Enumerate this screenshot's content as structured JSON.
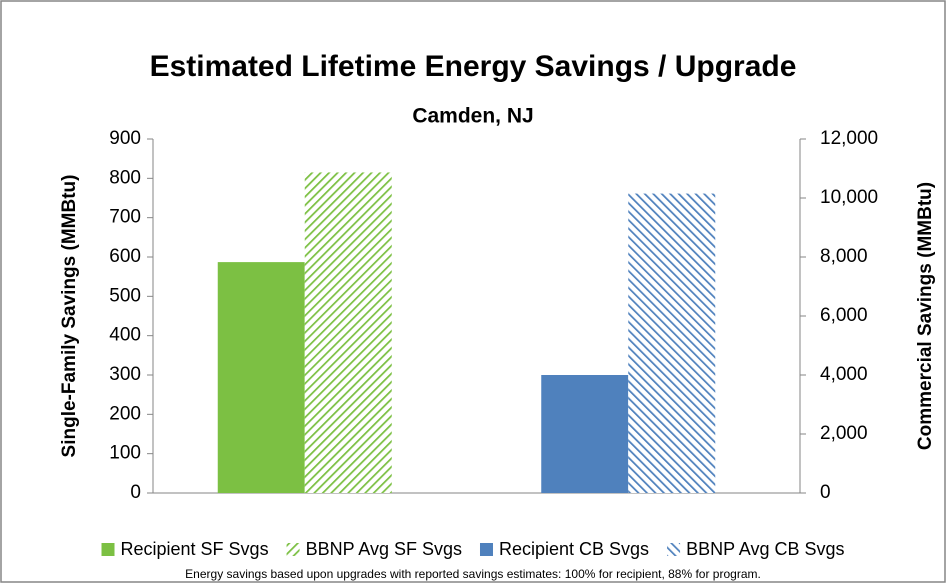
{
  "chart_data": {
    "type": "bar",
    "title": "Estimated Lifetime Energy Savings / Upgrade",
    "subtitle": "Camden, NJ",
    "y_label": "Single-Family Savings (MMBtu)",
    "y2_label": "Commercial Savings (MMBtu)",
    "note": "Energy savings based upon upgrades with reported savings estimates: 100% for recipient, 88% for program.",
    "categories": [
      null,
      null
    ],
    "series": [
      {
        "name": "Recipient SF Svgs",
        "color": "#7cc043",
        "hatch": false,
        "values": [
          587,
          null
        ]
      },
      {
        "name": "BBNP Avg SF Svgs",
        "color": "#7cc043",
        "hatch": true,
        "values": [
          815,
          null
        ]
      },
      {
        "name": "Recipient CB Svgs",
        "color": "#4f81bd",
        "hatch": false,
        "axis": "y2",
        "values": [
          null,
          4000
        ]
      },
      {
        "name": "BBNP Avg CB Svgs",
        "color": "#4f81bd",
        "hatch": true,
        "axis": "y2",
        "values": [
          null,
          10150
        ]
      }
    ],
    "ylim": [
      0,
      900
    ],
    "yticks": [
      0,
      100,
      200,
      300,
      400,
      500,
      600,
      700,
      800,
      900
    ],
    "y2lim": [
      0,
      12000
    ],
    "y2ticks": [
      0,
      {
        "value": 2000,
        "label": "2,000"
      },
      {
        "value": 4000,
        "label": "4,000"
      },
      {
        "value": 6000,
        "label": "6,000"
      },
      {
        "value": 8000,
        "label": "8,000"
      },
      {
        "value": 10000,
        "label": "10,000"
      },
      {
        "value": 12000,
        "label": "12,000"
      }
    ],
    "legend": "bottom",
    "grid": false
  }
}
